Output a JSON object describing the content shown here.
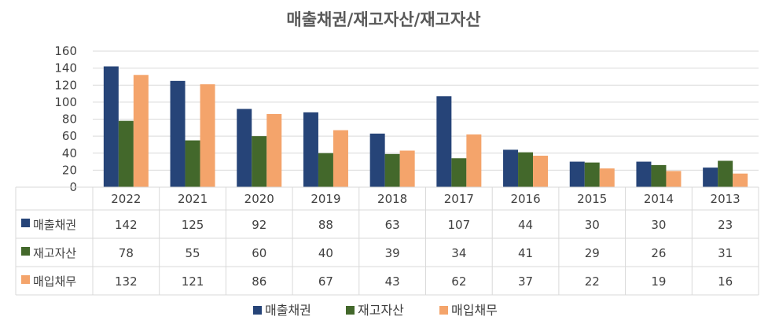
{
  "chart_data": {
    "type": "bar",
    "title": "매출채권/재고자산/재고자산",
    "categories": [
      "2022",
      "2021",
      "2020",
      "2019",
      "2018",
      "2017",
      "2016",
      "2015",
      "2014",
      "2013"
    ],
    "series": [
      {
        "name": "매출채권",
        "color": "#264478",
        "values": [
          142,
          125,
          92,
          88,
          63,
          107,
          44,
          30,
          30,
          23
        ]
      },
      {
        "name": "재고자산",
        "color": "#43682B",
        "values": [
          78,
          55,
          60,
          40,
          39,
          34,
          41,
          29,
          26,
          31
        ]
      },
      {
        "name": "매입채무",
        "color": "#F4A46B",
        "values": [
          132,
          121,
          86,
          67,
          43,
          62,
          37,
          22,
          19,
          16
        ]
      }
    ],
    "ylim": [
      0,
      160
    ],
    "yticks": [
      0,
      20,
      40,
      60,
      80,
      100,
      120,
      140,
      160
    ],
    "grid": true,
    "legend": "bottom",
    "data_table": true
  }
}
